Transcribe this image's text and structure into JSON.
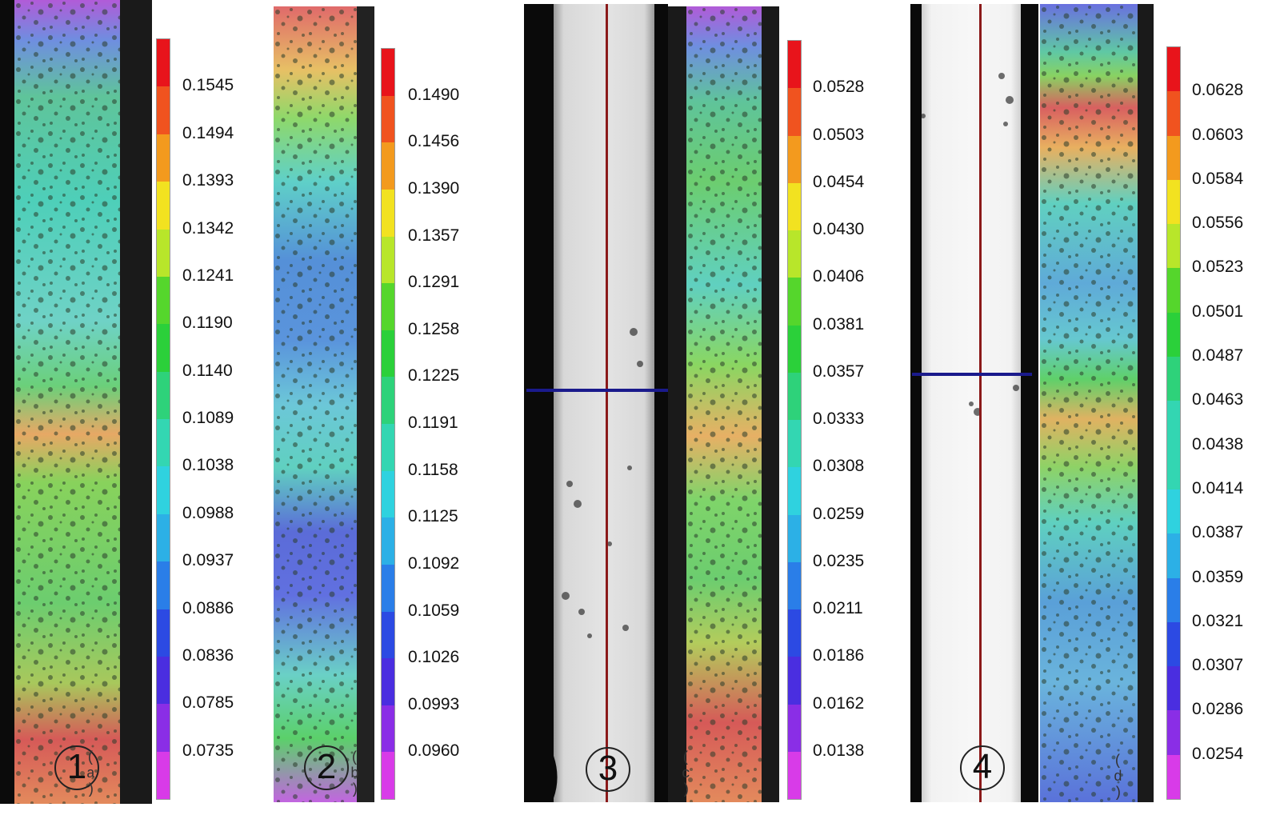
{
  "panels": [
    {
      "number": "1",
      "label": "( a )",
      "colorbar_ticks": [
        "0.1545",
        "0.1494",
        "0.1393",
        "0.1342",
        "0.1241",
        "0.1190",
        "0.1140",
        "0.1089",
        "0.1038",
        "0.0988",
        "0.0937",
        "0.0886",
        "0.0836",
        "0.0785",
        "0.0735"
      ]
    },
    {
      "number": "2",
      "label": "( b )",
      "colorbar_ticks": [
        "0.1490",
        "0.1456",
        "0.1390",
        "0.1357",
        "0.1291",
        "0.1258",
        "0.1225",
        "0.1191",
        "0.1158",
        "0.1125",
        "0.1092",
        "0.1059",
        "0.1026",
        "0.0993",
        "0.0960"
      ]
    },
    {
      "number": "3",
      "label": "( c )",
      "colorbar_ticks": [
        "0.0528",
        "0.0503",
        "0.0454",
        "0.0430",
        "0.0406",
        "0.0381",
        "0.0357",
        "0.0333",
        "0.0308",
        "0.0259",
        "0.0235",
        "0.0211",
        "0.0186",
        "0.0162",
        "0.0138"
      ]
    },
    {
      "number": "4",
      "label": "( d )",
      "colorbar_ticks": [
        "0.0628",
        "0.0603",
        "0.0584",
        "0.0556",
        "0.0523",
        "0.0501",
        "0.0487",
        "0.0463",
        "0.0438",
        "0.0414",
        "0.0387",
        "0.0359",
        "0.0321",
        "0.0307",
        "0.0286",
        "0.0254"
      ]
    }
  ],
  "colors": {
    "colorbar_top": "#e8141b",
    "colorbar_bottom": "#d83be8",
    "marker_line": "#1a1a8c",
    "center_line": "#8b1a1a"
  }
}
